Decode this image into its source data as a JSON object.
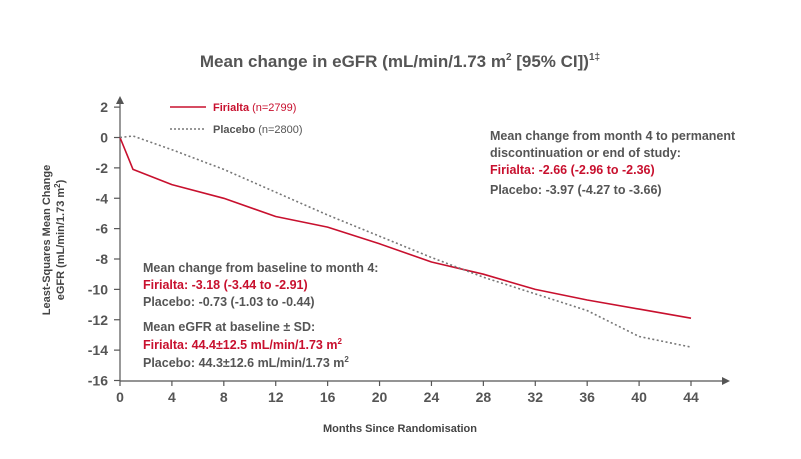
{
  "colors": {
    "firialta": "#c8102e",
    "placebo": "#777777",
    "text": "#555555"
  },
  "chart_data": {
    "type": "line",
    "title": "Mean change in eGFR (mL/min/1.73 m",
    "title_sup1": "2",
    "title_rest": "  [95% CI])",
    "title_sup2": "1‡",
    "xlabel": "Months Since Randomisation",
    "ylabel_line1": "Least-Squares Mean Change",
    "ylabel_line2": "eGFR (mL/min/1.73 m",
    "ylabel_sup": "2",
    "ylabel_close": ")",
    "xlim": [
      0,
      46
    ],
    "ylim": [
      -16,
      2
    ],
    "x_ticks": [
      0,
      4,
      8,
      12,
      16,
      20,
      24,
      28,
      32,
      36,
      40,
      44
    ],
    "y_ticks": [
      2,
      0,
      -2,
      -4,
      -6,
      -8,
      -10,
      -12,
      -14,
      -16
    ],
    "legend_position": "top-left",
    "series": [
      {
        "name": "Firialta",
        "n_label": "(n=2799)",
        "style": "solid",
        "color": "#c8102e",
        "x": [
          0,
          1,
          4,
          8,
          12,
          16,
          20,
          24,
          28,
          32,
          36,
          40,
          44
        ],
        "y": [
          0,
          -2.1,
          -3.1,
          -4.0,
          -5.2,
          -5.9,
          -7.0,
          -8.2,
          -9.0,
          -10.0,
          -10.7,
          -11.3,
          -11.9
        ]
      },
      {
        "name": "Placebo",
        "n_label": "(n=2800)",
        "style": "dotted",
        "color": "#777777",
        "x": [
          0,
          1,
          4,
          8,
          12,
          16,
          20,
          24,
          28,
          32,
          36,
          40,
          44
        ],
        "y": [
          0,
          0.1,
          -0.8,
          -2.1,
          -3.6,
          -5.1,
          -6.5,
          -7.9,
          -9.2,
          -10.3,
          -11.4,
          -13.1,
          -13.8
        ]
      }
    ],
    "annotations": {
      "month4_to_end": {
        "heading_line1": "Mean change from month 4 to permanent",
        "heading_line2": "discontinuation or end of study:",
        "firialta": "Firialta: -2.66 (-2.96 to -2.36)",
        "placebo": "Placebo: -3.97 (-4.27 to -3.66)"
      },
      "baseline_to_month4": {
        "heading": "Mean change from baseline to month 4:",
        "firialta": "Firialta: -3.18 (-3.44 to -2.91)",
        "placebo": "Placebo: -0.73 (-1.03 to -0.44)"
      },
      "baseline_egfr": {
        "heading": "Mean eGFR at baseline ± SD:",
        "firialta": "Firialta: 44.4±12.5 mL/min/1.73 m",
        "firialta_sup": "2",
        "placebo": "Placebo: 44.3±12.6 mL/min/1.73 m",
        "placebo_sup": "2"
      }
    }
  }
}
